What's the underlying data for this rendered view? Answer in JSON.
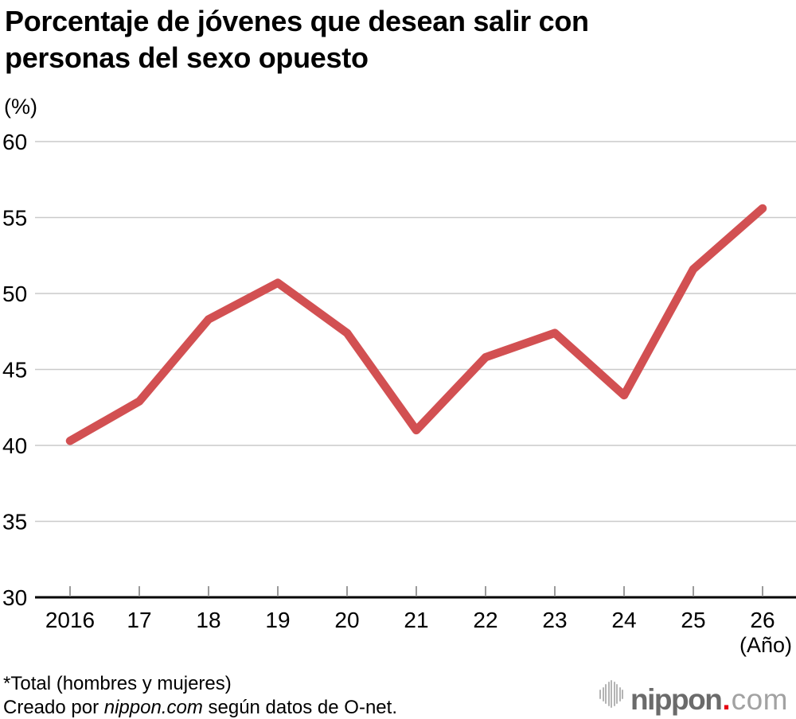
{
  "title": {
    "line1": "Porcentaje de jóvenes que desean salir con",
    "line2": "personas del sexo opuesto"
  },
  "y_axis_unit_label": "(%)",
  "footnote_line": "*Total (hombres y mujeres)",
  "credit": {
    "prefix": "Creado por ",
    "brand": "nippon.com",
    "suffix": " según datos de O-net."
  },
  "logo": {
    "icon": "soundwave-bars-icon",
    "wordmark": "nippon",
    "dot": ".",
    "tld": "com"
  },
  "colors": {
    "line": "#d25052",
    "grid": "#cacaca",
    "axis": "#000000",
    "tick": "#9b9b9b",
    "text": "#000000",
    "logo_dark_gray": "#6b6b6b",
    "logo_light_gray": "#a2a2a2",
    "logo_red": "#e60012",
    "logo_icon_gray": "#b4b4b4"
  },
  "chart_data": {
    "type": "line",
    "title": "Porcentaje de jóvenes que desean salir con personas del sexo opuesto",
    "x_categories": [
      "2016",
      "17",
      "18",
      "19",
      "20",
      "21",
      "22",
      "23",
      "24",
      "25",
      "26"
    ],
    "values": [
      40.3,
      42.9,
      48.3,
      50.7,
      47.4,
      41.0,
      45.8,
      47.4,
      43.3,
      51.6,
      55.6
    ],
    "series_name": "Total (hombres y mujeres)",
    "ylabel": "(%)",
    "xlabel": "(Año)",
    "ylim": [
      30,
      60
    ],
    "y_ticks": [
      30,
      35,
      40,
      45,
      50,
      55,
      60
    ],
    "grid": true,
    "legend_position": "none",
    "line_color": "#d25052"
  }
}
